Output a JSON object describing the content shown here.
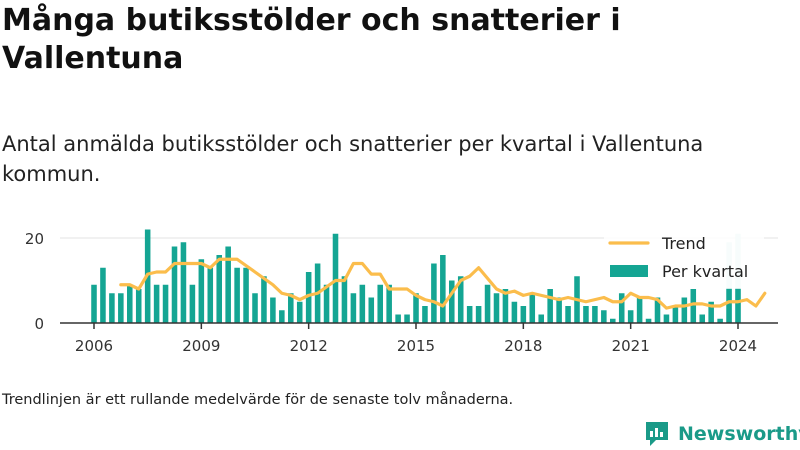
{
  "title": "Många butiksstölder och snatterier i Vallentuna",
  "subtitle": "Antal anmälda butiksstölder och snatterier per kvartal i Vallentuna kommun.",
  "note": "Trendlinjen är ett rullande medelvärde för de senaste tolv månaderna.",
  "brand": {
    "name": "Newsworthy"
  },
  "colors": {
    "bars": "#14a593",
    "bars_preliminary": "#c8ebe6",
    "trend": "#fbbd4c",
    "axis": "#333333",
    "grid": "#e3e3e3",
    "brand": "#1a9a88"
  },
  "chart_data": {
    "type": "bar",
    "ylim": [
      0,
      21
    ],
    "yticks": [
      0,
      20
    ],
    "xticks": [
      "2006",
      "2009",
      "2012",
      "2015",
      "2018",
      "2021",
      "2024"
    ],
    "grid": "horizontal",
    "legend_position": "top-right",
    "legend": {
      "trend": "Trend",
      "bars": "Per kvartal"
    },
    "x_start": 2006.0,
    "x_end": 2024.0,
    "preliminary_last": 2,
    "per_kvartal": [
      9,
      13,
      7,
      7,
      9,
      8,
      22,
      9,
      9,
      18,
      19,
      9,
      15,
      13,
      16,
      18,
      13,
      13,
      7,
      11,
      6,
      3,
      7,
      5,
      12,
      14,
      9,
      21,
      11,
      7,
      9,
      6,
      9,
      9,
      2,
      2,
      7,
      4,
      14,
      16,
      10,
      11,
      4,
      4,
      9,
      7,
      8,
      5,
      4,
      7,
      2,
      8,
      6,
      4,
      11,
      4,
      4,
      3,
      1,
      7,
      3,
      6,
      1,
      6,
      2,
      4,
      6,
      8,
      2,
      5,
      1,
      19,
      21
    ],
    "trend_start_index": 3,
    "trend": [
      9,
      9,
      8,
      11.5,
      12,
      12,
      14,
      14,
      14,
      14,
      13,
      15,
      15,
      15,
      13.5,
      12,
      10.5,
      9,
      7,
      6.5,
      5.5,
      6.5,
      7,
      8.5,
      10,
      10,
      14,
      14,
      11.5,
      11.5,
      8,
      8,
      8,
      6.5,
      5.5,
      5,
      4,
      7,
      10,
      11,
      13,
      10.5,
      8,
      7,
      7.5,
      6.5,
      7,
      6.5,
      6,
      5.5,
      6,
      5.5,
      5,
      5.5,
      6,
      5,
      5,
      7,
      6,
      6,
      5.5,
      3.5,
      4,
      4,
      4.5,
      4.5,
      4,
      4,
      5,
      5,
      5.5,
      4,
      7
    ]
  }
}
